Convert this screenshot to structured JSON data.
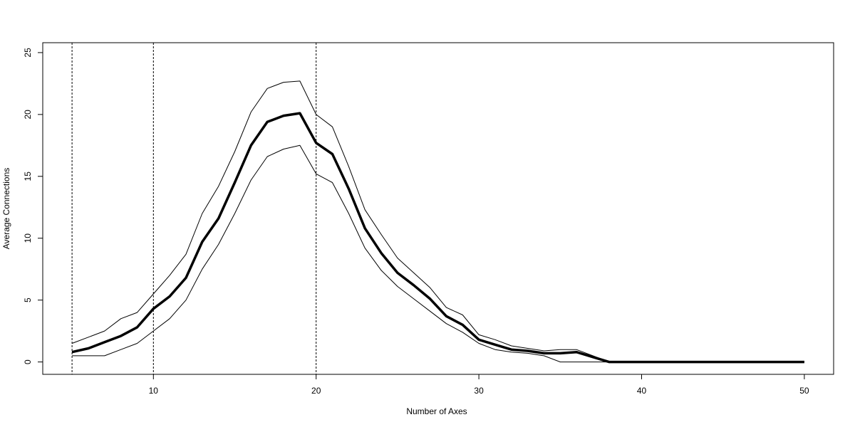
{
  "chart_data": {
    "type": "line",
    "title": "",
    "xlabel": "Number of Axes",
    "ylabel": "Average Connections",
    "xlim": [
      3.2,
      51.8
    ],
    "ylim": [
      -1,
      25.8
    ],
    "x_ticks": [
      10,
      20,
      30,
      40,
      50
    ],
    "y_ticks": [
      0,
      5,
      10,
      15,
      20,
      25
    ],
    "grid": false,
    "legend": "none",
    "reference_lines_x": [
      5,
      10,
      20
    ],
    "x": [
      5,
      6,
      7,
      8,
      9,
      10,
      11,
      12,
      13,
      14,
      15,
      16,
      17,
      18,
      19,
      20,
      21,
      22,
      23,
      24,
      25,
      26,
      27,
      28,
      29,
      30,
      31,
      32,
      33,
      34,
      35,
      36,
      37,
      38,
      39,
      40,
      41,
      42,
      43,
      44,
      45,
      46,
      47,
      48,
      49,
      50
    ],
    "series": [
      {
        "role": "mean",
        "color": "#000000",
        "values": [
          0.8,
          1.1,
          1.6,
          2.1,
          2.8,
          4.3,
          5.3,
          6.8,
          9.7,
          11.6,
          14.5,
          17.5,
          19.4,
          19.9,
          20.1,
          17.7,
          16.8,
          14.0,
          10.8,
          8.8,
          7.2,
          6.2,
          5.1,
          3.7,
          3.0,
          1.8,
          1.4,
          1.0,
          0.9,
          0.7,
          0.7,
          0.8,
          0.4,
          0.0,
          0.0,
          0.0,
          0.0,
          0.0,
          0.0,
          0.0,
          0.0,
          0.0,
          0.0,
          0.0,
          0.0,
          0.0
        ]
      },
      {
        "role": "upper",
        "color": "#000000",
        "values": [
          1.5,
          2.0,
          2.5,
          3.5,
          4.0,
          5.5,
          7.0,
          8.7,
          12.0,
          14.2,
          17.0,
          20.2,
          22.1,
          22.6,
          22.7,
          20.0,
          19.0,
          15.8,
          12.3,
          10.3,
          8.4,
          7.2,
          6.0,
          4.4,
          3.8,
          2.2,
          1.8,
          1.3,
          1.1,
          0.9,
          1.0,
          1.0,
          0.5,
          0.0,
          0.0,
          0.0,
          0.0,
          0.0,
          0.0,
          0.0,
          0.0,
          0.0,
          0.0,
          0.0,
          0.0,
          0.0
        ]
      },
      {
        "role": "lower",
        "color": "#000000",
        "values": [
          0.5,
          0.5,
          0.5,
          1.0,
          1.5,
          2.5,
          3.5,
          5.0,
          7.5,
          9.5,
          12.0,
          14.7,
          16.6,
          17.2,
          17.5,
          15.2,
          14.5,
          12.0,
          9.2,
          7.4,
          6.1,
          5.1,
          4.1,
          3.1,
          2.4,
          1.5,
          1.0,
          0.8,
          0.7,
          0.5,
          0.0,
          0.0,
          0.0,
          0.0,
          0.0,
          0.0,
          0.0,
          0.0,
          0.0,
          0.0,
          0.0,
          0.0,
          0.0,
          0.0,
          0.0,
          0.0
        ]
      }
    ]
  }
}
